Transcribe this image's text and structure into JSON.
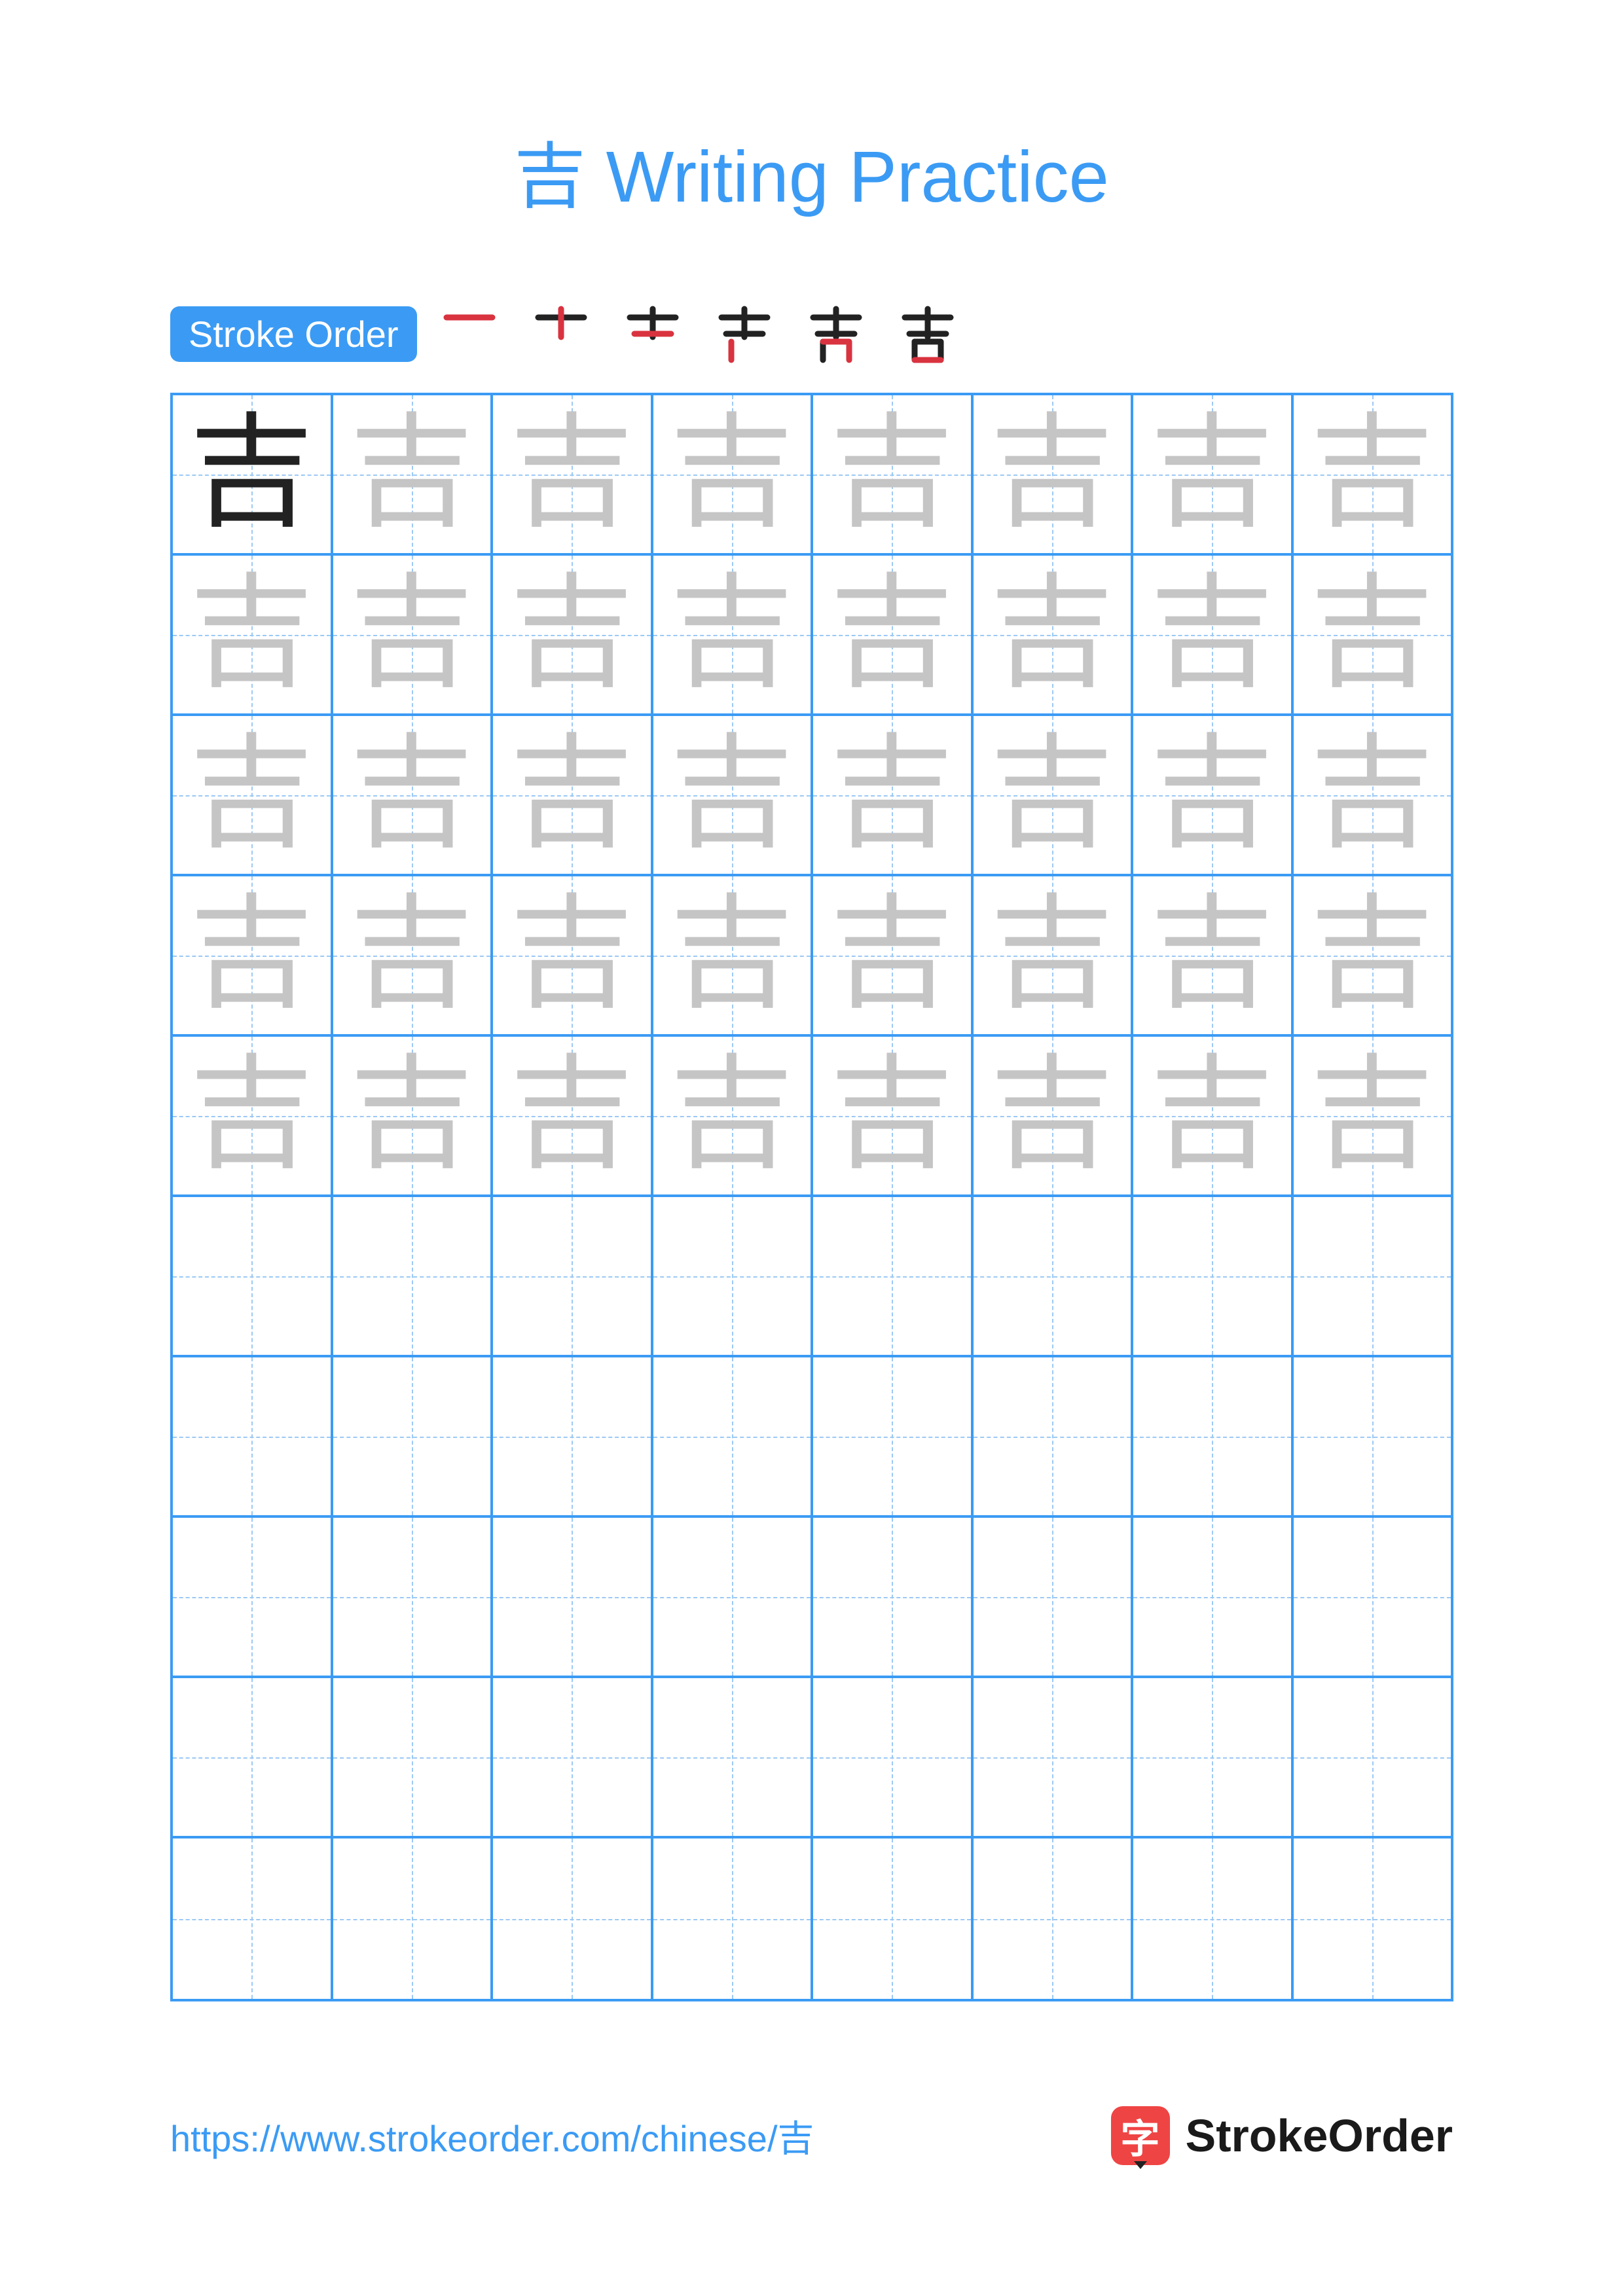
{
  "title": "吉 Writing Practice",
  "character": "吉",
  "colors": {
    "accent": "#3b9bf4",
    "grid_border": "#3b9bf4",
    "grid_dashed": "#9cc9f5",
    "char_solid": "#222222",
    "char_faded": "#c5c5c5",
    "stroke_existing": "#222222",
    "stroke_current": "#d9333f",
    "brand_icon_bg": "#ef4444",
    "footer_text": "#3b9bf4",
    "brand_text": "#1a1a1a"
  },
  "stroke_order": {
    "label": "Stroke Order",
    "steps_count": 6
  },
  "grid": {
    "rows": 10,
    "cols": 8,
    "solid_char_position": {
      "row": 0,
      "col": 0
    },
    "faded_rows_end": 5
  },
  "footer": {
    "url": "https://www.strokeorder.com/chinese/吉",
    "brand_char": "字",
    "brand_name": "StrokeOrder"
  }
}
